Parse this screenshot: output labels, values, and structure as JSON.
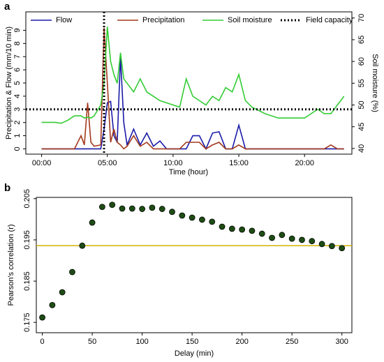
{
  "chart_data": [
    {
      "type": "line",
      "panel": "a",
      "xlabel": "Time (hour)",
      "ylabel": "Precipitation & Flow (mm/10 min)",
      "y2label": "Soil moisture (%)",
      "x": [
        0,
        1,
        1.5,
        2,
        2.5,
        3,
        3.25,
        3.5,
        3.75,
        4,
        4.5,
        4.75,
        5,
        5.25,
        5.5,
        5.75,
        6,
        6.25,
        6.5,
        7,
        7.5,
        8,
        8.5,
        9,
        9.5,
        10,
        10.5,
        11,
        11.5,
        12,
        12.5,
        13,
        13.5,
        14,
        14.5,
        15,
        15.5,
        16,
        17,
        18,
        19,
        20,
        20.5,
        21,
        21.5,
        22,
        22.5,
        23
      ],
      "series": [
        {
          "name": "Flow",
          "color": "#1a1aa8",
          "axis": "y",
          "values": [
            0,
            0,
            0,
            0,
            0,
            0,
            0,
            0,
            0,
            0,
            0,
            1.5,
            3.5,
            3.6,
            1,
            0.5,
            7,
            2,
            0.3,
            1.5,
            0.3,
            1.2,
            0.2,
            0.6,
            0,
            0,
            0,
            0,
            1,
            1,
            0,
            1.2,
            1.3,
            0,
            0,
            1.8,
            0,
            0,
            0,
            0,
            0,
            0,
            0,
            0,
            0,
            0,
            0,
            0
          ]
        },
        {
          "name": "Precipitation",
          "color": "#a3391d",
          "axis": "y",
          "values": [
            0,
            0,
            0,
            0,
            0,
            1,
            0.3,
            3.5,
            0.5,
            0.2,
            0.3,
            9.2,
            5,
            0.5,
            1.5,
            0.5,
            0.3,
            0,
            0.2,
            1,
            0.2,
            0.5,
            0,
            0,
            0,
            0,
            0,
            0.5,
            0.5,
            0.5,
            0,
            0.3,
            0.5,
            0,
            0,
            0.3,
            0,
            0,
            0,
            0,
            0,
            0,
            0,
            0,
            0,
            0.3,
            0,
            0
          ]
        },
        {
          "name": "Soil moisture",
          "color": "#33cc33",
          "axis": "y2",
          "values": [
            46,
            46,
            45.8,
            46.5,
            47.5,
            47.5,
            47,
            47.2,
            47,
            47.5,
            50,
            55,
            68,
            60,
            57,
            55,
            62,
            56,
            55,
            53,
            56,
            53,
            52,
            51,
            50.5,
            50,
            49.5,
            56,
            52,
            51,
            50,
            52,
            51,
            54,
            53,
            57,
            51,
            49.5,
            48,
            47,
            47,
            47,
            48,
            49,
            48,
            48,
            50,
            52
          ]
        }
      ],
      "reference_line": {
        "name": "Field capacity",
        "color": "#000000",
        "axis": "y2",
        "value": 49,
        "style": "dotted"
      },
      "vline": {
        "x": 4.75,
        "color": "#000000",
        "style": "dotted"
      },
      "xlim": [
        -1.2,
        23.6
      ],
      "xticks": [
        {
          "value": 0,
          "label": "00:00"
        },
        {
          "value": 5,
          "label": "05:00"
        },
        {
          "value": 10,
          "label": "10:00"
        },
        {
          "value": 15,
          "label": "15:00"
        },
        {
          "value": 20,
          "label": "20:00"
        }
      ],
      "ylim": [
        -0.4,
        10.4
      ],
      "yticks": [
        0,
        1,
        2,
        3,
        4,
        5,
        6,
        7,
        8,
        9
      ],
      "y2lim": [
        38.7,
        71.4
      ],
      "y2ticks": [
        40,
        45,
        50,
        55,
        60,
        65,
        70
      ],
      "legend": "top"
    },
    {
      "type": "scatter",
      "panel": "b",
      "xlabel": "Delay (min)",
      "ylabel": "Pearson's correlation (r)",
      "x": [
        0,
        10,
        20,
        30,
        40,
        50,
        60,
        70,
        80,
        90,
        100,
        110,
        120,
        130,
        140,
        150,
        160,
        170,
        180,
        190,
        200,
        210,
        220,
        230,
        240,
        250,
        260,
        270,
        280,
        290,
        300
      ],
      "values": [
        0.1762,
        0.1792,
        0.1823,
        0.1872,
        0.1936,
        0.1992,
        0.203,
        0.2035,
        0.2026,
        0.2026,
        0.2025,
        0.2028,
        0.2025,
        0.2018,
        0.2009,
        0.2004,
        0.1999,
        0.1994,
        0.1982,
        0.1977,
        0.1975,
        0.1972,
        0.1965,
        0.1955,
        0.1962,
        0.1953,
        0.195,
        0.1947,
        0.194,
        0.1935,
        0.193
      ],
      "color": "#1e4d14",
      "reference_line": {
        "value": 0.1936,
        "color": "#d4b400"
      },
      "xlim": [
        -6,
        310
      ],
      "xticks": [
        0,
        50,
        100,
        150,
        200,
        250,
        300
      ],
      "ylim": [
        0.1725,
        0.2053
      ],
      "yticks": [
        0.175,
        0.185,
        0.195,
        0.205
      ]
    }
  ]
}
